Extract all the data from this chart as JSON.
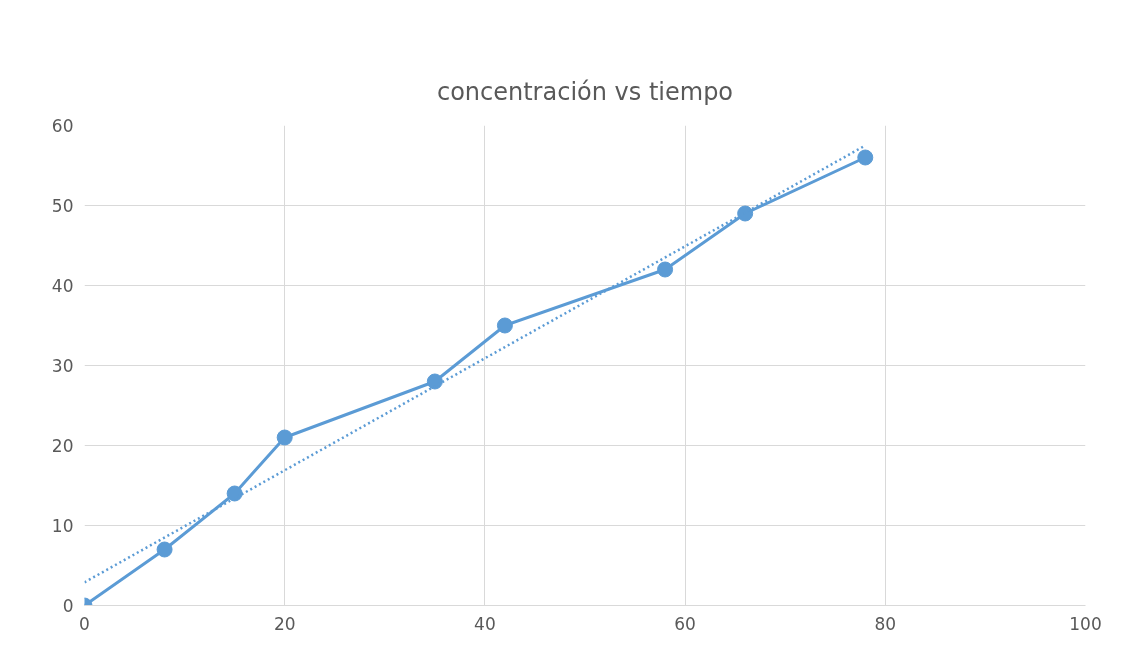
{
  "chart_data": {
    "type": "line",
    "title": "concentración vs tiempo",
    "series": [
      {
        "color": "#5b9bd5",
        "x": [
          0,
          8,
          15,
          20,
          35,
          42,
          58,
          66,
          78
        ],
        "values": [
          0,
          7,
          14,
          21,
          28,
          35,
          42,
          49,
          56
        ],
        "marker": "circle",
        "line_style": "solid"
      },
      {
        "color": "#5b9bd5",
        "x": [
          0,
          78
        ],
        "values": [
          2.9,
          57.5
        ],
        "marker": "none",
        "line_style": "dotted"
      }
    ],
    "xlim": [
      0,
      100
    ],
    "xticks": [
      0,
      20,
      40,
      60,
      80,
      100
    ],
    "ylim": [
      0,
      60
    ],
    "yticks": [
      0,
      10,
      20,
      30,
      40,
      50,
      60
    ],
    "grid": true
  }
}
